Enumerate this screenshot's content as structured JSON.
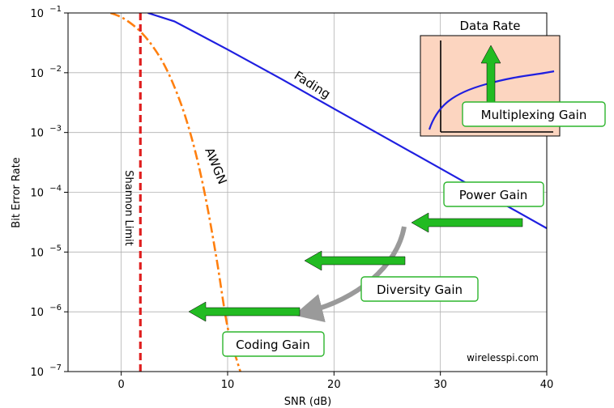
{
  "chart_data": {
    "type": "line",
    "xlabel": "SNR (dB)",
    "ylabel": "Bit Error Rate",
    "xlim": [
      -5,
      40
    ],
    "ylim": [
      1e-07,
      0.1
    ],
    "yscale": "log",
    "grid": true,
    "x_ticks": [
      0,
      10,
      20,
      30,
      40
    ],
    "y_ticks": [
      0.1,
      0.01,
      0.001,
      0.0001,
      1e-05,
      1e-06,
      1e-07
    ],
    "y_tick_exponents": [
      "−1",
      "−2",
      "−3",
      "−4",
      "−5",
      "−6",
      "−7"
    ],
    "y_tick_base": "10",
    "series": [
      {
        "name": "Fading",
        "color": "#1f1fe0",
        "style": "solid",
        "x": [
          2.5,
          5,
          10,
          15,
          20,
          25,
          30,
          35,
          40
        ],
        "y": [
          0.1,
          0.0724,
          0.0244,
          0.00794,
          0.0025,
          0.00079,
          0.00025,
          7.9e-05,
          2.5e-05
        ]
      },
      {
        "name": "AWGN",
        "color": "#ff7f0e",
        "style": "dashdot",
        "x": [
          -1,
          0,
          1,
          2,
          3,
          4,
          5,
          6,
          7,
          8,
          9,
          10,
          11,
          11.2
        ],
        "y": [
          0.1,
          0.085,
          0.065,
          0.045,
          0.027,
          0.014,
          0.0058,
          0.0019,
          0.00045,
          7e-05,
          7e-06,
          5.5e-07,
          1.3e-07,
          1e-07
        ]
      }
    ],
    "vlines": [
      {
        "name": "Shannon Limit",
        "x": 1.8,
        "color": "#e02020",
        "style": "dashed"
      }
    ]
  },
  "annotations": {
    "fading_label": "Fading",
    "awgn_label": "AWGN",
    "shannon_label": "Shannon Limit",
    "power_gain": "Power Gain",
    "diversity_gain": "Diversity Gain",
    "coding_gain": "Coding Gain",
    "watermark": "wirelesspi.com"
  },
  "inset": {
    "title": "Data Rate",
    "label": "Multiplexing Gain",
    "background": "#fcd5c0",
    "curve_color": "#1f1fe0"
  },
  "colors": {
    "arrow_green": "#22bb22",
    "arrow_gray": "#9a9a9a"
  }
}
